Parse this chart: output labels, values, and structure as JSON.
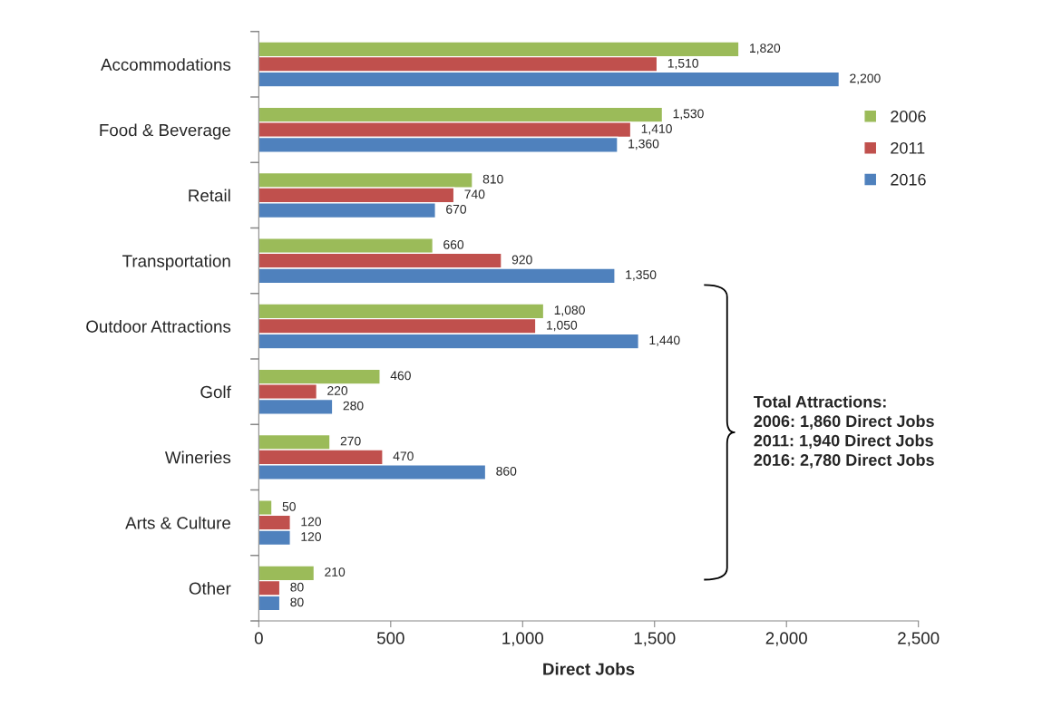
{
  "chart_data": {
    "type": "bar",
    "orientation": "horizontal",
    "xlabel": "Direct Jobs",
    "categories": [
      "Accommodations",
      "Food & Beverage",
      "Retail",
      "Transportation",
      "Outdoor Attractions",
      "Golf",
      "Wineries",
      "Arts & Culture",
      "Other"
    ],
    "series": [
      {
        "name": "2006",
        "color": "#9bbb59",
        "values": [
          1820,
          1530,
          810,
          660,
          1080,
          460,
          270,
          50,
          210
        ],
        "value_labels": [
          "1,820",
          "1,530",
          "810",
          "660",
          "1,080",
          "460",
          "270",
          "50",
          "210"
        ]
      },
      {
        "name": "2011",
        "color": "#c0504d",
        "values": [
          1510,
          1410,
          740,
          920,
          1050,
          220,
          470,
          120,
          80
        ],
        "value_labels": [
          "1,510",
          "1,410",
          "740",
          "920",
          "1,050",
          "220",
          "470",
          "120",
          "80"
        ]
      },
      {
        "name": "2016",
        "color": "#4f81bd",
        "values": [
          2200,
          1360,
          670,
          1350,
          1440,
          280,
          860,
          120,
          80
        ],
        "value_labels": [
          "2,200",
          "1,360",
          "670",
          "1,350",
          "1,440",
          "280",
          "860",
          "120",
          "80"
        ]
      }
    ],
    "xlim": [
      0,
      2500
    ],
    "xticks": [
      0,
      500,
      {
        "value": 1000,
        "label": "1,000"
      },
      {
        "value": 1500,
        "label": "1,500"
      },
      {
        "value": 2000,
        "label": "2,000"
      },
      {
        "value": 2500,
        "label": "2,500"
      }
    ],
    "grid": false,
    "legend": "right",
    "annotations": [
      "Total Attractions:\n2006: 1,860 Direct Jobs\n2011: 1,940 Direct Jobs\n2016: 2,780 Direct Jobs"
    ]
  }
}
